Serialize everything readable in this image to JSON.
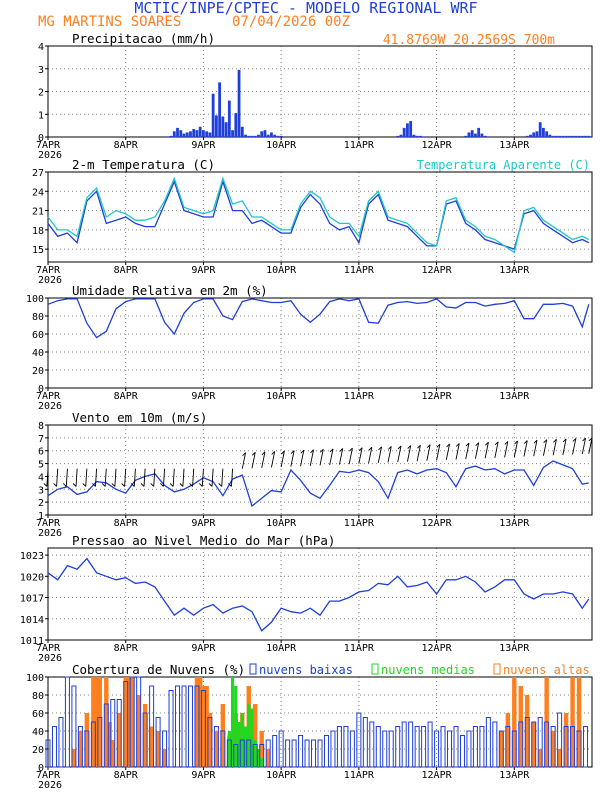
{
  "header": {
    "line1": "MCTIC/INPE/CPTEC - MODELO REGIONAL WRF",
    "station": "MG MARTINS SOARES",
    "run": "07/04/2026 00Z",
    "coords": "41.8769W 20.2569S 700m"
  },
  "colors": {
    "title": "#1f3fd8",
    "orange": "#ff7f1f",
    "blue": "#1f3fd8",
    "cyan": "#1fc8c8",
    "green": "#1fd81f",
    "black": "#000000"
  },
  "day_labels": [
    "7APR",
    "8APR",
    "9APR",
    "10APR",
    "11APR",
    "12APR",
    "13APR"
  ],
  "year_label": "2026",
  "chart_data": [
    {
      "id": "precip",
      "type": "bar",
      "title": "Precipitacao (mm/h)",
      "ylim": [
        0,
        4
      ],
      "yticks": [
        0,
        1,
        2,
        3,
        4
      ],
      "x_unit": "hours since 07APR 00Z",
      "x": [
        37,
        38,
        39,
        40,
        41,
        42,
        43,
        44,
        45,
        46,
        47,
        48,
        49,
        50,
        51,
        52,
        53,
        54,
        55,
        56,
        57,
        58,
        59,
        60,
        61,
        62,
        63,
        64,
        65,
        66,
        67,
        68,
        69,
        70,
        71,
        72,
        108,
        109,
        110,
        111,
        112,
        113,
        114,
        115,
        116,
        129,
        130,
        131,
        132,
        133,
        134,
        135,
        148,
        149,
        150,
        151,
        152,
        153,
        154,
        155,
        156,
        157,
        158,
        159,
        160,
        161,
        162,
        163,
        164,
        165,
        166,
        167
      ],
      "values": [
        0.03,
        0.05,
        0.25,
        0.4,
        0.3,
        0.15,
        0.2,
        0.25,
        0.35,
        0.3,
        0.45,
        0.3,
        0.25,
        0.2,
        1.9,
        0.95,
        2.4,
        0.9,
        0.65,
        1.6,
        0.3,
        1.05,
        2.95,
        0.45,
        0.1,
        0.05,
        0.05,
        0.05,
        0.1,
        0.25,
        0.3,
        0.1,
        0.2,
        0.1,
        0.05,
        0.05,
        0.05,
        0.1,
        0.4,
        0.6,
        0.7,
        0.1,
        0.05,
        0.05,
        0.03,
        0.05,
        0.2,
        0.3,
        0.15,
        0.4,
        0.15,
        0.05,
        0.05,
        0.1,
        0.2,
        0.25,
        0.65,
        0.4,
        0.25,
        0.1,
        0.05,
        0.05,
        0.05,
        0.05,
        0.05,
        0.05,
        0.05,
        0.05,
        0.05,
        0.05,
        0.05,
        0.05
      ]
    },
    {
      "id": "temp",
      "type": "line",
      "title": "2-m Temperatura (C)",
      "ylim": [
        13,
        27
      ],
      "yticks": [
        15,
        18,
        21,
        24,
        27
      ],
      "x_unit": "hours since 07APR 00Z",
      "series": [
        {
          "name": "",
          "x": [
            0,
            3,
            6,
            9,
            12,
            15,
            18,
            21,
            24,
            27,
            30,
            33,
            36,
            39,
            42,
            45,
            48,
            51,
            54,
            57,
            60,
            63,
            66,
            69,
            72,
            75,
            78,
            81,
            84,
            87,
            90,
            93,
            96,
            99,
            102,
            105,
            108,
            111,
            114,
            117,
            120,
            123,
            126,
            129,
            132,
            135,
            138,
            141,
            144,
            147,
            150,
            153,
            156,
            159,
            162,
            165,
            167
          ],
          "values": [
            19,
            17,
            17.5,
            16,
            22.5,
            24,
            19,
            19.5,
            20,
            19,
            18.5,
            18.5,
            22,
            25.5,
            21,
            20.5,
            20,
            20,
            25.5,
            21,
            21,
            19,
            19.5,
            18.5,
            17.5,
            17.5,
            21.5,
            23.5,
            22,
            19,
            18,
            18.5,
            16,
            22,
            23.5,
            19.5,
            19,
            18.5,
            17,
            15.5,
            15.5,
            22,
            22.5,
            19,
            18,
            16.5,
            16,
            15.5,
            15,
            20.5,
            21,
            19,
            18,
            17,
            16,
            16.5,
            16
          ]
        },
        {
          "name": "Temperatura Aparente (C)",
          "x": [
            0,
            3,
            6,
            9,
            12,
            15,
            18,
            21,
            24,
            27,
            30,
            33,
            36,
            39,
            42,
            45,
            48,
            51,
            54,
            57,
            60,
            63,
            66,
            69,
            72,
            75,
            78,
            81,
            84,
            87,
            90,
            93,
            96,
            99,
            102,
            105,
            108,
            111,
            114,
            117,
            120,
            123,
            126,
            129,
            132,
            135,
            138,
            141,
            144,
            147,
            150,
            153,
            156,
            159,
            162,
            165,
            167
          ],
          "values": [
            20,
            18,
            18,
            17,
            23,
            24.5,
            20,
            21,
            20.5,
            19.5,
            19.5,
            20,
            22.5,
            26,
            21.5,
            21,
            20.5,
            21,
            26,
            22,
            22.5,
            20,
            20,
            19,
            18,
            18,
            22,
            24,
            23,
            20,
            19,
            19,
            17,
            22.5,
            24,
            20,
            19.5,
            19,
            17.5,
            16,
            15.5,
            22.5,
            23,
            19.5,
            18.5,
            17,
            16.5,
            15.5,
            14.5,
            21,
            21.5,
            19.5,
            18.5,
            17.5,
            16.5,
            17,
            16.5
          ]
        }
      ]
    },
    {
      "id": "humidity",
      "type": "line",
      "title": "Umidade Relativa em 2m (%)",
      "ylim": [
        0,
        100
      ],
      "yticks": [
        0,
        20,
        40,
        60,
        80,
        100
      ],
      "x_unit": "hours since 07APR 00Z",
      "series": [
        {
          "name": "",
          "x": [
            0,
            3,
            6,
            9,
            12,
            15,
            18,
            21,
            24,
            27,
            30,
            33,
            36,
            39,
            42,
            45,
            48,
            51,
            54,
            57,
            60,
            63,
            66,
            69,
            72,
            75,
            78,
            81,
            84,
            87,
            90,
            93,
            96,
            99,
            102,
            105,
            108,
            111,
            114,
            117,
            120,
            123,
            126,
            129,
            132,
            135,
            138,
            141,
            144,
            147,
            150,
            153,
            156,
            159,
            162,
            165,
            167
          ],
          "values": [
            93,
            97,
            99,
            99,
            72,
            56,
            63,
            88,
            96,
            99,
            99,
            99,
            73,
            60,
            83,
            95,
            99,
            99,
            80,
            76,
            96,
            99,
            97,
            95,
            95,
            97,
            82,
            73,
            82,
            96,
            99,
            97,
            99,
            73,
            72,
            92,
            95,
            96,
            94,
            95,
            99,
            90,
            89,
            95,
            95,
            91,
            93,
            94,
            97,
            77,
            77,
            93,
            93,
            94,
            91,
            68,
            93
          ]
        }
      ]
    },
    {
      "id": "wind",
      "type": "line",
      "title": "Vento em 10m (m/s)",
      "ylim": [
        1,
        8
      ],
      "yticks": [
        1,
        2,
        3,
        4,
        5,
        6,
        7,
        8
      ],
      "x_unit": "hours since 07APR 00Z",
      "series": [
        {
          "name": "",
          "x": [
            0,
            3,
            6,
            9,
            12,
            15,
            18,
            21,
            24,
            27,
            30,
            33,
            36,
            39,
            42,
            45,
            48,
            51,
            54,
            57,
            60,
            63,
            66,
            69,
            72,
            75,
            78,
            81,
            84,
            87,
            90,
            93,
            96,
            99,
            102,
            105,
            108,
            111,
            114,
            117,
            120,
            123,
            126,
            129,
            132,
            135,
            138,
            141,
            144,
            147,
            150,
            153,
            156,
            159,
            162,
            165,
            167
          ],
          "values": [
            2.5,
            3,
            3.2,
            2.6,
            2.8,
            3.6,
            3.5,
            3,
            2.7,
            3.7,
            4,
            4.2,
            3.3,
            2.8,
            3,
            3.4,
            3.9,
            3.6,
            2.5,
            3.8,
            4.1,
            1.7,
            2.3,
            2.9,
            2.8,
            4.5,
            3.7,
            2.7,
            2.3,
            3.3,
            4.4,
            4.3,
            4.5,
            4.3,
            3.6,
            2.3,
            4.3,
            4.5,
            4.2,
            4.5,
            4.6,
            4.3,
            3.2,
            4.6,
            4.8,
            4.5,
            4.6,
            4.2,
            4.5,
            4.5,
            3.3,
            4.7,
            5.2,
            4.9,
            4.6,
            3.4,
            3.5
          ]
        }
      ],
      "barbs": "wind direction vectors plotted along the speed curve"
    },
    {
      "id": "pressure",
      "type": "line",
      "title": "Pressao ao Nivel Medio do Mar (hPa)",
      "ylim": [
        1011,
        1024
      ],
      "yticks": [
        1011,
        1014,
        1017,
        1020,
        1023
      ],
      "x_unit": "hours since 07APR 00Z",
      "series": [
        {
          "name": "",
          "x": [
            0,
            3,
            6,
            9,
            12,
            15,
            18,
            21,
            24,
            27,
            30,
            33,
            36,
            39,
            42,
            45,
            48,
            51,
            54,
            57,
            60,
            63,
            66,
            69,
            72,
            75,
            78,
            81,
            84,
            87,
            90,
            93,
            96,
            99,
            102,
            105,
            108,
            111,
            114,
            117,
            120,
            123,
            126,
            129,
            132,
            135,
            138,
            141,
            144,
            147,
            150,
            153,
            156,
            159,
            162,
            165,
            167
          ],
          "values": [
            1020.5,
            1019.5,
            1021.5,
            1021,
            1022.5,
            1020.5,
            1020,
            1019.5,
            1019.8,
            1019,
            1019.2,
            1018.5,
            1016.5,
            1014.5,
            1015.5,
            1014.5,
            1015.5,
            1016,
            1014.8,
            1015.5,
            1015.8,
            1015,
            1012.3,
            1013.5,
            1015.5,
            1015,
            1014.8,
            1015.5,
            1014.5,
            1016.5,
            1016.5,
            1017,
            1017.8,
            1018,
            1019,
            1018.8,
            1020,
            1018.5,
            1018.7,
            1019.2,
            1017.5,
            1019.5,
            1019.5,
            1020,
            1019.2,
            1017.8,
            1018.5,
            1019.5,
            1019.5,
            1017.5,
            1016.8,
            1017.5,
            1017.5,
            1017.8,
            1017.5,
            1015.5,
            1016.8
          ]
        }
      ]
    },
    {
      "id": "clouds",
      "type": "bar",
      "title": "Cobertura de Nuvens (%)",
      "ylim": [
        0,
        100
      ],
      "yticks": [
        0,
        20,
        40,
        60,
        80,
        100
      ],
      "x_unit": "hours since 07APR 00Z",
      "legend": [
        "nuvens baixas",
        "nuvens medias",
        "nuvens altas"
      ],
      "series": [
        {
          "name": "nuvens baixas",
          "x": [
            0,
            2,
            4,
            6,
            8,
            10,
            12,
            14,
            16,
            18,
            20,
            22,
            24,
            26,
            28,
            30,
            32,
            34,
            36,
            38,
            40,
            42,
            44,
            46,
            48,
            50,
            52,
            54,
            56,
            58,
            60,
            62,
            64,
            66,
            68,
            70,
            72,
            74,
            76,
            78,
            80,
            82,
            84,
            86,
            88,
            90,
            92,
            94,
            96,
            98,
            100,
            102,
            104,
            106,
            108,
            110,
            112,
            114,
            116,
            118,
            120,
            122,
            124,
            126,
            128,
            130,
            132,
            134,
            136,
            138,
            140,
            142,
            144,
            146,
            148,
            150,
            152,
            154,
            156,
            158,
            160,
            162,
            164,
            166
          ],
          "values": [
            30,
            45,
            55,
            100,
            90,
            45,
            40,
            50,
            55,
            70,
            75,
            75,
            95,
            100,
            100,
            60,
            90,
            55,
            40,
            85,
            90,
            90,
            90,
            90,
            85,
            55,
            45,
            40,
            30,
            25,
            30,
            30,
            25,
            25,
            30,
            35,
            40,
            30,
            30,
            35,
            30,
            30,
            30,
            35,
            40,
            45,
            45,
            40,
            60,
            55,
            50,
            45,
            40,
            40,
            45,
            50,
            50,
            45,
            45,
            50,
            40,
            45,
            40,
            45,
            35,
            40,
            45,
            45,
            55,
            50,
            40,
            45,
            40,
            50,
            55,
            50,
            55,
            50,
            45,
            60,
            45,
            45,
            40,
            45
          ]
        },
        {
          "name": "nuvens medias",
          "x": [
            56,
            57,
            58,
            59,
            60,
            61,
            62,
            63,
            64,
            65,
            66
          ],
          "values": [
            40,
            100,
            90,
            50,
            60,
            45,
            70,
            65,
            30,
            20,
            10
          ]
        },
        {
          "name": "nuvens altas",
          "x": [
            8,
            10,
            12,
            14,
            15,
            16,
            18,
            19,
            20,
            22,
            24,
            25,
            26,
            28,
            30,
            32,
            34,
            36,
            46,
            47,
            48,
            49,
            50,
            52,
            54,
            56,
            58,
            60,
            62,
            64,
            66,
            68,
            140,
            142,
            144,
            146,
            148,
            150,
            152,
            154,
            156,
            158,
            160,
            162,
            164
          ],
          "values": [
            20,
            40,
            60,
            100,
            100,
            100,
            100,
            50,
            30,
            60,
            100,
            100,
            100,
            80,
            70,
            45,
            40,
            20,
            100,
            100,
            90,
            90,
            60,
            40,
            70,
            35,
            60,
            60,
            90,
            70,
            40,
            20,
            40,
            60,
            100,
            90,
            80,
            50,
            20,
            100,
            40,
            20,
            60,
            100,
            100
          ]
        }
      ]
    }
  ]
}
